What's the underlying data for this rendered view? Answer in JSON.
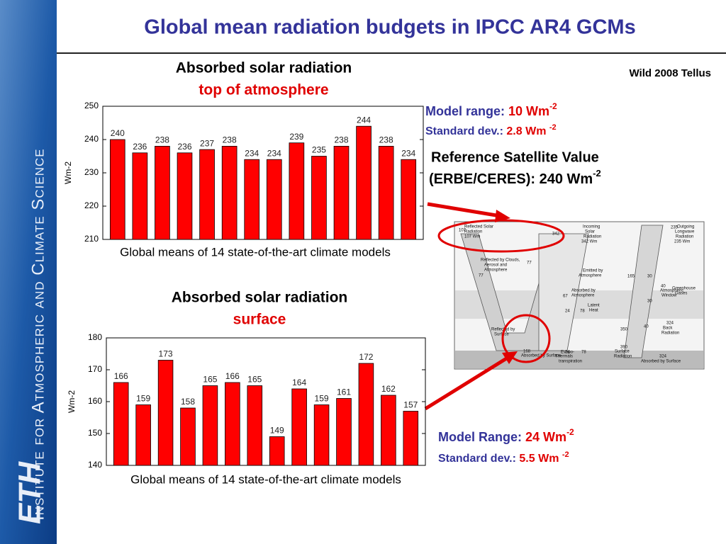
{
  "title": "Global mean radiation budgets in IPCC AR4 GCMs",
  "source": "Wild 2008 Tellus",
  "sidebar": {
    "institute": "Institute for Atmospheric and Climate Science",
    "logo": "ETH"
  },
  "toa_stats": {
    "range_label": "Model range:",
    "range_value": "10 Wm",
    "range_exp": "-2",
    "sd_label": "Standard dev.:",
    "sd_value": "2.8 Wm",
    "sd_exp": "-2",
    "ref_line1": "Reference Satellite Value",
    "ref_line2": "(ERBE/CERES): 240 Wm",
    "ref_exp": "-2"
  },
  "surface_stats": {
    "range_label": "Model Range:",
    "range_value": "24 Wm",
    "range_exp": "-2",
    "sd_label": "Standard dev.:",
    "sd_value": "5.5 Wm",
    "sd_exp": "-2"
  },
  "diagram": {
    "labels": [
      "Reflected Solar",
      "Radiation",
      "107 Wm",
      "Incoming",
      "Solar",
      "Radiation",
      "342 Wm",
      "Outgoing",
      "Longwave",
      "Radiation",
      "235 Wm",
      "Reflected by Clouds,",
      "Aerosol and",
      "Atmosphere",
      "Emitted by",
      "Atmosphere",
      "Atmospheric",
      "Window",
      "Greenhouse",
      "Gases",
      "Absorbed by",
      "Atmosphere",
      "Latent",
      "Heat",
      "Reflected by",
      "Surface",
      "Absorbed by Surface",
      "Thermals",
      "Evapo-",
      "transpiration",
      "Surface",
      "Radiation",
      "Back",
      "Radiation",
      "Absorbed by Surface"
    ],
    "numbers": [
      "107",
      "342",
      "235",
      "77",
      "77",
      "165",
      "30",
      "40",
      "67",
      "24",
      "78",
      "350",
      "40",
      "324",
      "30",
      "168",
      "24",
      "78",
      "390",
      "324"
    ]
  },
  "chart_data": [
    {
      "type": "bar",
      "title": "Absorbed solar radiation",
      "subtitle": "top of atmosphere",
      "ylabel": "Wm-2",
      "caption": "Global means of 14 state-of-the-art climate models",
      "values": [
        240,
        236,
        238,
        236,
        237,
        238,
        234,
        234,
        239,
        235,
        238,
        244,
        238,
        234
      ],
      "color": "#ff0000",
      "ylim": [
        210,
        250
      ],
      "yticks": [
        210,
        220,
        230,
        240,
        250
      ]
    },
    {
      "type": "bar",
      "title": "Absorbed solar radiation",
      "subtitle": "surface",
      "ylabel": "Wm-2",
      "caption": "Global means of 14 state-of-the-art climate models",
      "values": [
        166,
        159,
        173,
        158,
        165,
        166,
        165,
        149,
        164,
        159,
        161,
        172,
        162,
        157
      ],
      "color": "#ff0000",
      "ylim": [
        140,
        180
      ],
      "yticks": [
        140,
        150,
        160,
        170,
        180
      ]
    }
  ]
}
